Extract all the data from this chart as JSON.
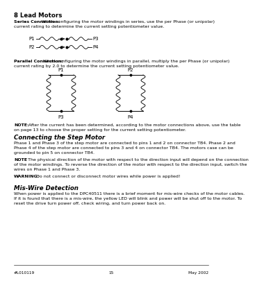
{
  "page_header": "8 Lead Motors",
  "series_label": "Series Connection:",
  "series_line1": " When configuring the motor windings in series, use the per Phase (or unipolar)",
  "series_line2": "current rating to determine the current setting potentiometer value.",
  "parallel_label": "Parallel Connection:",
  "parallel_line1": " When configuring the motor windings in parallel, multiply the per Phase (or unipolar)",
  "parallel_line2": "current rating by 2.0 to determine the current setting potentiometer value.",
  "note1_label": "NOTE:",
  "note1_line1": " After the current has been determined, according to the motor connections above, use the table",
  "note1_line2": "on page 13 to choose the proper setting for the current setting potentiometer.",
  "section2_header": "Connecting the Step Motor",
  "sec2_line1": "Phase 1 and Phase 3 of the step motor are connected to pins 1 and 2 on connector TB4. Phase 2 and",
  "sec2_line2": "Phase 4 of the step motor are connected to pins 3 and 4 on connector TB4. The motors case can be",
  "sec2_line3": "grounded to pin 5 on connector TB4.",
  "note2_label": "NOTE",
  "note2_line1": ": The physical direction of the motor with respect to the direction input will depend on the connection",
  "note2_line2": "of the motor windings. To reverse the direction of the motor with respect to the direction input, switch the",
  "note2_line3": "wires on Phase 1 and Phase 3.",
  "warning_label": "WARNING:",
  "warning_text": " Do not connect or disconnect motor wires while power is applied!",
  "section3_header": "Mis-Wire Detection",
  "sec3_line1": "When power is applied to the DPC40511 there is a brief moment for mis-wire checks of the motor cables.",
  "sec3_line2": "If it is found that there is a mis-wire, the yellow LED will blink and power will be shut off to the motor. To",
  "sec3_line3": "reset the drive turn power off, check wiring, and turn power back on.",
  "footer_left": "#L010119",
  "footer_center": "15",
  "footer_right": "May 2002",
  "bg_color": "#ffffff",
  "text_color": "#000000",
  "lm": 10,
  "rm": 290,
  "fs_body": 4.5,
  "fs_header": 6.2,
  "fs_footer": 4.2
}
